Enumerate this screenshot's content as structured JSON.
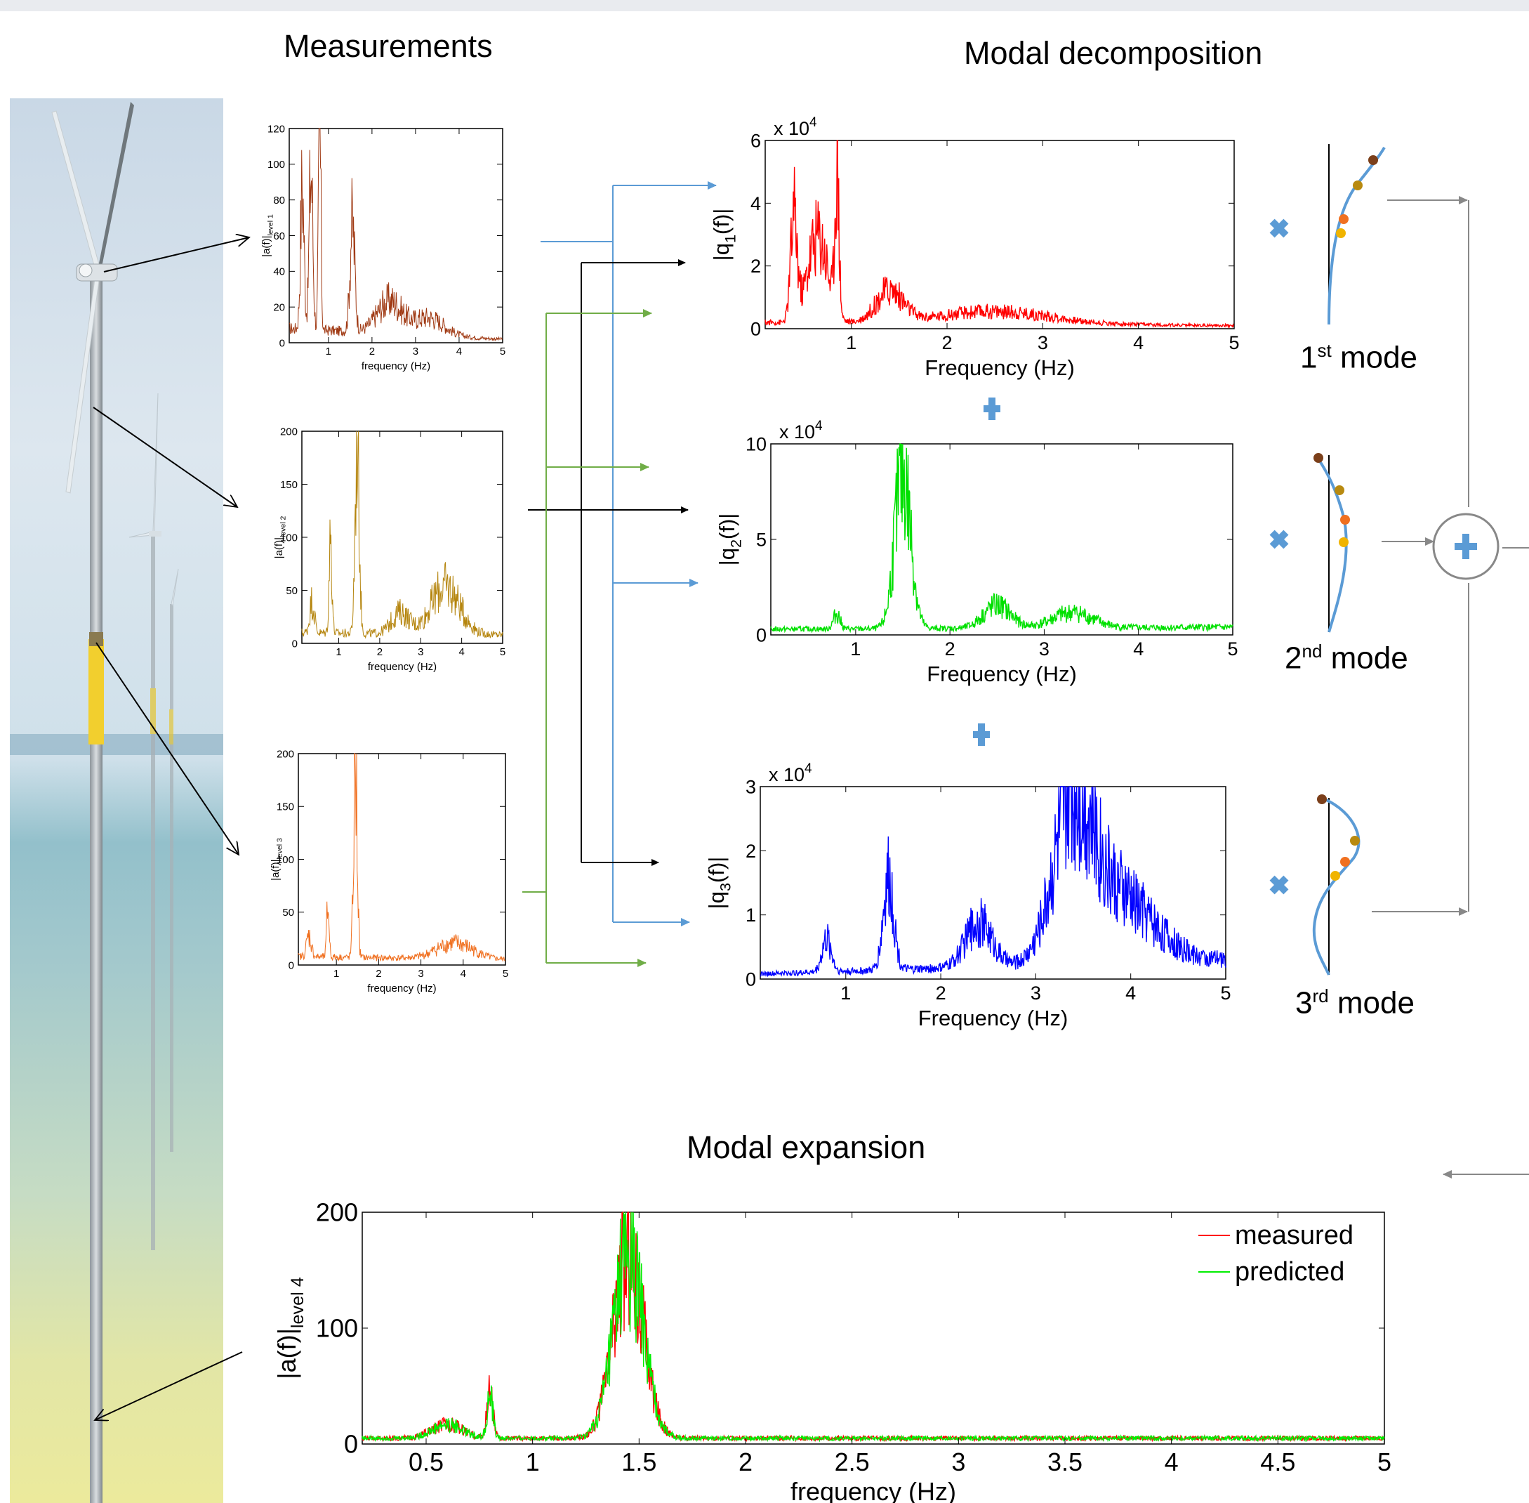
{
  "headings": {
    "measurements": "Measurements",
    "modal_decomposition": "Modal decomposition",
    "modal_expansion": "Modal expansion"
  },
  "modes": [
    {
      "num": "1",
      "suffix": "st",
      "word": "mode"
    },
    {
      "num": "2",
      "suffix": "nd",
      "word": "mode"
    },
    {
      "num": "3",
      "suffix": "rd",
      "word": "mode"
    }
  ],
  "colors": {
    "level1": "#a03a14",
    "level2": "#b5850e",
    "level3": "#f07020",
    "q1": "#ff0000",
    "q2": "#00e000",
    "q3": "#0000ff",
    "measured": "#ff0000",
    "predicted": "#00ee00",
    "arrow_blue": "#5b9bd5",
    "arrow_green": "#70ad47",
    "mode_shape": "#5b9bd5",
    "operator": "#5b9bd5"
  },
  "chart_data": [
    {
      "id": "level1",
      "type": "line",
      "xlabel": "frequency (Hz)",
      "ylabel_main": "|a(f)|",
      "ylabel_sub": "level 1",
      "xlim": [
        0.1,
        5
      ],
      "ylim": [
        0,
        120
      ],
      "xticks": [
        1,
        2,
        3,
        4,
        5
      ],
      "yticks": [
        0,
        20,
        40,
        60,
        80,
        100,
        120
      ],
      "peaks": [
        [
          0.4,
          80,
          0.06
        ],
        [
          0.6,
          90,
          0.06
        ],
        [
          0.8,
          115,
          0.04
        ],
        [
          1.55,
          60,
          0.08
        ],
        [
          2.4,
          18,
          0.4
        ],
        [
          3.3,
          10,
          0.5
        ]
      ],
      "baseline": 8,
      "tail": 2,
      "noise": 0.45,
      "exp_offset": "",
      "axes_style": "small"
    },
    {
      "id": "level2",
      "type": "line",
      "xlabel": "frequency (Hz)",
      "ylabel_main": "|a(f)|",
      "ylabel_sub": "level 2",
      "xlim": [
        0.1,
        5
      ],
      "ylim": [
        0,
        200
      ],
      "xticks": [
        1,
        2,
        3,
        4,
        5
      ],
      "yticks": [
        0,
        50,
        100,
        150,
        200
      ],
      "peaks": [
        [
          0.35,
          30,
          0.08
        ],
        [
          0.8,
          90,
          0.05
        ],
        [
          1.45,
          190,
          0.07
        ],
        [
          3.6,
          45,
          0.5
        ],
        [
          2.5,
          20,
          0.3
        ]
      ],
      "baseline": 10,
      "tail": 8,
      "noise": 0.45,
      "exp_offset": "",
      "axes_style": "small"
    },
    {
      "id": "level3",
      "type": "line",
      "xlabel": "frequency (Hz)",
      "ylabel_main": "|a(f)|",
      "ylabel_sub": "level 3",
      "xlim": [
        0.1,
        5
      ],
      "ylim": [
        0,
        200
      ],
      "xticks": [
        1,
        2,
        3,
        4,
        5
      ],
      "yticks": [
        0,
        50,
        100,
        150,
        200
      ],
      "peaks": [
        [
          0.35,
          20,
          0.08
        ],
        [
          0.8,
          50,
          0.04
        ],
        [
          1.45,
          185,
          0.06
        ],
        [
          3.8,
          15,
          0.6
        ]
      ],
      "baseline": 8,
      "tail": 5,
      "noise": 0.45,
      "exp_offset": "",
      "axes_style": "small"
    },
    {
      "id": "q1",
      "type": "line",
      "xlabel": "Frequency (Hz)",
      "ylabel_main": "|q",
      "ylabel_sub": "1",
      "ylabel_end": "(f)|",
      "xlim": [
        0.1,
        5
      ],
      "ylim": [
        0,
        6
      ],
      "xticks": [
        1,
        2,
        3,
        4,
        5
      ],
      "yticks": [
        0,
        2,
        4,
        6
      ],
      "peaks": [
        [
          0.4,
          3.2,
          0.05
        ],
        [
          0.65,
          2.8,
          0.15
        ],
        [
          0.85,
          4.8,
          0.03
        ],
        [
          1.4,
          1.0,
          0.2
        ],
        [
          2.5,
          0.4,
          0.8
        ]
      ],
      "baseline": 0.2,
      "tail": 0.1,
      "noise": 0.45,
      "exp_offset": "x 10^4",
      "axes_style": "large"
    },
    {
      "id": "q2",
      "type": "line",
      "xlabel": "Frequency (Hz)",
      "ylabel_main": "|q",
      "ylabel_sub": "2",
      "ylabel_end": "(f)|",
      "xlim": [
        0.1,
        5
      ],
      "ylim": [
        0,
        10
      ],
      "xticks": [
        1,
        2,
        3,
        4,
        5
      ],
      "yticks": [
        0,
        5,
        10
      ],
      "peaks": [
        [
          0.8,
          0.8,
          0.05
        ],
        [
          1.5,
          8.2,
          0.12
        ],
        [
          2.5,
          1.2,
          0.2
        ],
        [
          3.3,
          0.8,
          0.3
        ]
      ],
      "baseline": 0.3,
      "tail": 0.4,
      "noise": 0.45,
      "exp_offset": "x 10^4",
      "axes_style": "large"
    },
    {
      "id": "q3",
      "type": "line",
      "xlabel": "Frequency (Hz)",
      "ylabel_main": "|q",
      "ylabel_sub": "3",
      "ylabel_end": "(f)|",
      "xlim": [
        0.1,
        5
      ],
      "ylim": [
        0,
        3
      ],
      "xticks": [
        1,
        2,
        3,
        4,
        5
      ],
      "yticks": [
        0,
        1,
        2,
        3
      ],
      "peaks": [
        [
          0.8,
          0.5,
          0.07
        ],
        [
          1.45,
          1.4,
          0.08
        ],
        [
          2.4,
          0.7,
          0.2
        ],
        [
          3.4,
          2.4,
          0.3
        ],
        [
          3.9,
          1.0,
          0.5
        ]
      ],
      "baseline": 0.08,
      "tail": 0.3,
      "noise": 0.45,
      "exp_offset": "x 10^4",
      "axes_style": "large"
    },
    {
      "id": "level4",
      "type": "line",
      "xlabel": "frequency (Hz)",
      "ylabel_main": "|a(f)|",
      "ylabel_sub": "level 4",
      "xlim": [
        0.2,
        5
      ],
      "ylim": [
        0,
        200
      ],
      "xticks": [
        0.5,
        1,
        1.5,
        2,
        2.5,
        3,
        3.5,
        4,
        4.5,
        5
      ],
      "yticks": [
        0,
        100,
        200
      ],
      "legend": [
        "measured",
        "predicted"
      ],
      "legend_position": "top-right",
      "series": [
        {
          "name": "measured",
          "peaks": [
            [
              0.8,
              40,
              0.02
            ],
            [
              0.6,
              12,
              0.1
            ],
            [
              1.45,
              160,
              0.1
            ]
          ],
          "baseline": 5,
          "tail": 5
        },
        {
          "name": "predicted",
          "peaks": [
            [
              0.8,
              35,
              0.02
            ],
            [
              0.6,
              12,
              0.1
            ],
            [
              1.45,
              155,
              0.1
            ]
          ],
          "baseline": 5,
          "tail": 5
        }
      ],
      "noise": 0.4,
      "exp_offset": "",
      "axes_style": "large"
    }
  ]
}
